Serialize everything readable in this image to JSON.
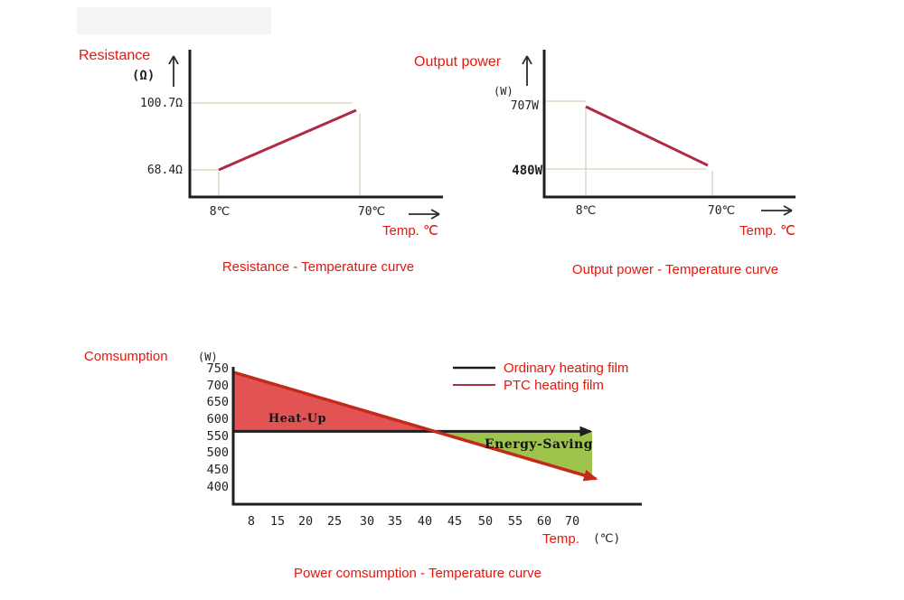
{
  "colors": {
    "red_text": "#e3170d",
    "axis": "#1f1f1f",
    "curve_red": "#b02a45",
    "ref_line": "#ddd7c2",
    "ptc_line": "#c5291a",
    "fill_red": "#e25353",
    "fill_green": "#9ec44e",
    "legend_ptc": "#a8333f",
    "arrow": "#2a2a2a"
  },
  "chart_data": [
    {
      "id": "resistance-temperature-curve",
      "type": "line",
      "title": "Resistance - Temperature curve",
      "ylabel": "Resistance",
      "ylabel_unit": "(Ω)",
      "xlabel": "Temp. ℃",
      "y_tick_labels": [
        "100.7Ω",
        "68.4Ω"
      ],
      "x_tick_labels": [
        "8℃",
        "70℃"
      ],
      "x_unit": "℃",
      "y_unit": "Ω",
      "points": [
        {
          "x": 8,
          "y": 68.4
        },
        {
          "x": 70,
          "y": 100.7
        }
      ]
    },
    {
      "id": "output-power-temperature-curve",
      "type": "line",
      "title": "Output power - Temperature curve",
      "ylabel": "Output power",
      "ylabel_unit": "(W)",
      "xlabel": "Temp. ℃",
      "y_tick_labels": [
        "707W",
        "480W"
      ],
      "x_tick_labels": [
        "8℃",
        "70℃"
      ],
      "x_unit": "℃",
      "y_unit": "W",
      "points": [
        {
          "x": 8,
          "y": 707
        },
        {
          "x": 70,
          "y": 480
        }
      ]
    },
    {
      "id": "power-consumption-temperature-curve",
      "type": "area",
      "title": "Power comsumption - Temperature curve",
      "ylabel": "Comsumption",
      "ylabel_unit": "(W)",
      "xlabel": "Temp.",
      "xlabel_unit": "(℃)",
      "ylim": [
        400,
        750
      ],
      "y_ticks": [
        750,
        700,
        650,
        600,
        550,
        500,
        450,
        400
      ],
      "x_ticks": [
        8,
        15,
        20,
        25,
        30,
        35,
        40,
        45,
        50,
        55,
        60,
        70
      ],
      "legend": [
        {
          "label": "Ordinary heating film",
          "color": "#1f1f1f"
        },
        {
          "label": "PTC heating film",
          "color": "#a8333f"
        }
      ],
      "series": [
        {
          "name": "Ordinary heating film",
          "shape": "constant",
          "value": 570
        },
        {
          "name": "PTC heating film",
          "shape": "linear",
          "start": 745,
          "end": 430
        }
      ],
      "regions": [
        {
          "label": "Heat-Up",
          "color": "#e25353"
        },
        {
          "label": "Energy-Saving",
          "color": "#9ec44e"
        }
      ]
    }
  ]
}
